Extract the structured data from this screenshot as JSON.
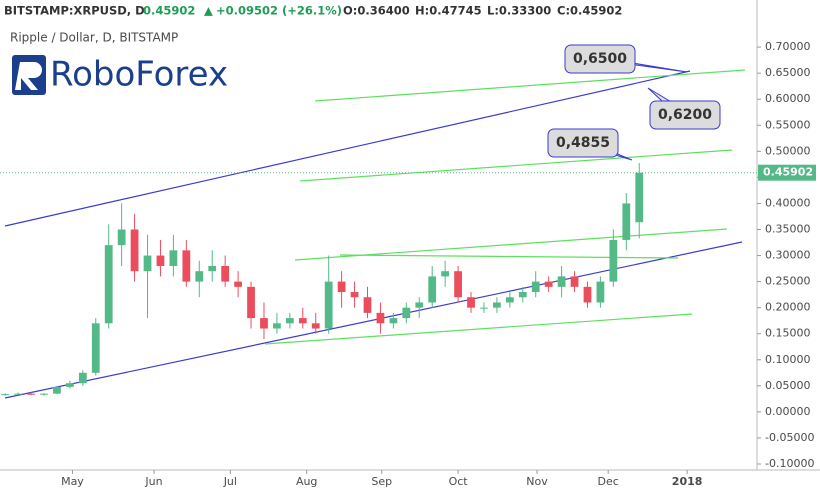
{
  "header": {
    "symbol": "BITSTAMP:XRPUSD, D",
    "last": "0.45902",
    "change": "+0.09502 (+26.1%)",
    "open": "O:0.36400",
    "high": "H:0.47745",
    "low": "L:0.33300",
    "close": "C:0.45902"
  },
  "logo": "RoboForex",
  "chart_data": {
    "type": "candlestick",
    "subtitle": "Ripple / Dollar, D, BITSTAMP",
    "up_color": "#53b987",
    "down_color": "#eb4d5c",
    "candles": [
      {
        "o": 0.033,
        "h": 0.036,
        "l": 0.031,
        "c": 0.034
      },
      {
        "o": 0.034,
        "h": 0.037,
        "l": 0.032,
        "c": 0.035
      },
      {
        "o": 0.035,
        "h": 0.038,
        "l": 0.032,
        "c": 0.033
      },
      {
        "o": 0.033,
        "h": 0.036,
        "l": 0.031,
        "c": 0.035
      },
      {
        "o": 0.035,
        "h": 0.05,
        "l": 0.034,
        "c": 0.048
      },
      {
        "o": 0.048,
        "h": 0.06,
        "l": 0.045,
        "c": 0.055
      },
      {
        "o": 0.055,
        "h": 0.08,
        "l": 0.05,
        "c": 0.075
      },
      {
        "o": 0.075,
        "h": 0.18,
        "l": 0.07,
        "c": 0.17
      },
      {
        "o": 0.17,
        "h": 0.36,
        "l": 0.16,
        "c": 0.32
      },
      {
        "o": 0.32,
        "h": 0.4,
        "l": 0.28,
        "c": 0.35
      },
      {
        "o": 0.35,
        "h": 0.38,
        "l": 0.25,
        "c": 0.27
      },
      {
        "o": 0.27,
        "h": 0.34,
        "l": 0.18,
        "c": 0.3
      },
      {
        "o": 0.3,
        "h": 0.33,
        "l": 0.26,
        "c": 0.28
      },
      {
        "o": 0.28,
        "h": 0.34,
        "l": 0.26,
        "c": 0.31
      },
      {
        "o": 0.31,
        "h": 0.33,
        "l": 0.24,
        "c": 0.25
      },
      {
        "o": 0.25,
        "h": 0.29,
        "l": 0.22,
        "c": 0.27
      },
      {
        "o": 0.27,
        "h": 0.31,
        "l": 0.25,
        "c": 0.28
      },
      {
        "o": 0.28,
        "h": 0.3,
        "l": 0.24,
        "c": 0.25
      },
      {
        "o": 0.25,
        "h": 0.27,
        "l": 0.22,
        "c": 0.24
      },
      {
        "o": 0.24,
        "h": 0.25,
        "l": 0.16,
        "c": 0.18
      },
      {
        "o": 0.18,
        "h": 0.21,
        "l": 0.14,
        "c": 0.16
      },
      {
        "o": 0.16,
        "h": 0.19,
        "l": 0.15,
        "c": 0.17
      },
      {
        "o": 0.17,
        "h": 0.19,
        "l": 0.16,
        "c": 0.18
      },
      {
        "o": 0.18,
        "h": 0.2,
        "l": 0.16,
        "c": 0.17
      },
      {
        "o": 0.17,
        "h": 0.19,
        "l": 0.15,
        "c": 0.16
      },
      {
        "o": 0.16,
        "h": 0.3,
        "l": 0.15,
        "c": 0.25
      },
      {
        "o": 0.25,
        "h": 0.27,
        "l": 0.2,
        "c": 0.23
      },
      {
        "o": 0.23,
        "h": 0.25,
        "l": 0.2,
        "c": 0.22
      },
      {
        "o": 0.22,
        "h": 0.24,
        "l": 0.18,
        "c": 0.19
      },
      {
        "o": 0.19,
        "h": 0.21,
        "l": 0.15,
        "c": 0.17
      },
      {
        "o": 0.17,
        "h": 0.19,
        "l": 0.16,
        "c": 0.18
      },
      {
        "o": 0.18,
        "h": 0.21,
        "l": 0.17,
        "c": 0.2
      },
      {
        "o": 0.2,
        "h": 0.22,
        "l": 0.18,
        "c": 0.21
      },
      {
        "o": 0.21,
        "h": 0.28,
        "l": 0.2,
        "c": 0.26
      },
      {
        "o": 0.26,
        "h": 0.29,
        "l": 0.24,
        "c": 0.27
      },
      {
        "o": 0.27,
        "h": 0.28,
        "l": 0.21,
        "c": 0.22
      },
      {
        "o": 0.22,
        "h": 0.23,
        "l": 0.19,
        "c": 0.2
      },
      {
        "o": 0.2,
        "h": 0.21,
        "l": 0.19,
        "c": 0.2
      },
      {
        "o": 0.2,
        "h": 0.22,
        "l": 0.19,
        "c": 0.21
      },
      {
        "o": 0.21,
        "h": 0.23,
        "l": 0.2,
        "c": 0.22
      },
      {
        "o": 0.22,
        "h": 0.24,
        "l": 0.21,
        "c": 0.23
      },
      {
        "o": 0.23,
        "h": 0.27,
        "l": 0.22,
        "c": 0.25
      },
      {
        "o": 0.25,
        "h": 0.26,
        "l": 0.23,
        "c": 0.24
      },
      {
        "o": 0.24,
        "h": 0.28,
        "l": 0.22,
        "c": 0.26
      },
      {
        "o": 0.26,
        "h": 0.27,
        "l": 0.23,
        "c": 0.24
      },
      {
        "o": 0.24,
        "h": 0.25,
        "l": 0.2,
        "c": 0.21
      },
      {
        "o": 0.21,
        "h": 0.26,
        "l": 0.2,
        "c": 0.25
      },
      {
        "o": 0.25,
        "h": 0.35,
        "l": 0.24,
        "c": 0.33
      },
      {
        "o": 0.33,
        "h": 0.42,
        "l": 0.31,
        "c": 0.4
      },
      {
        "o": 0.364,
        "h": 0.47745,
        "l": 0.333,
        "c": 0.45902
      }
    ],
    "xlim": [
      -0.4,
      58.1
    ],
    "xticks": [
      {
        "value": 5.2,
        "label": "May"
      },
      {
        "value": 11.5,
        "label": "Jun"
      },
      {
        "value": 17.4,
        "label": "Jul"
      },
      {
        "value": 23.3,
        "label": "Aug"
      },
      {
        "value": 29.1,
        "label": "Sep"
      },
      {
        "value": 35,
        "label": "Oct"
      },
      {
        "value": 41.1,
        "label": "Nov"
      },
      {
        "value": 46.6,
        "label": "Dec"
      },
      {
        "value": 52.7,
        "label": "2018"
      }
    ],
    "ylim": [
      -0.1115,
      0.7904
    ],
    "yticks": [
      {
        "value": 0.7,
        "label": "0.70000"
      },
      {
        "value": 0.65,
        "label": "0.65000"
      },
      {
        "value": 0.6,
        "label": "0.60000"
      },
      {
        "value": 0.55,
        "label": "0.55000"
      },
      {
        "value": 0.5,
        "label": "0.50000"
      },
      {
        "value": 0.45,
        "label": "0.45000"
      },
      {
        "value": 0.4,
        "label": "0.40000"
      },
      {
        "value": 0.35,
        "label": "0.35000"
      },
      {
        "value": 0.3,
        "label": "0.30000"
      },
      {
        "value": 0.25,
        "label": "0.25000"
      },
      {
        "value": 0.2,
        "label": "0.20000"
      },
      {
        "value": 0.15,
        "label": "0.15000"
      },
      {
        "value": 0.1,
        "label": "0.10000"
      },
      {
        "value": 0.05,
        "label": "0.05000"
      },
      {
        "value": 0,
        "label": "0.00000"
      },
      {
        "value": -0.05,
        "label": "-0.05000"
      },
      {
        "value": -0.1,
        "label": "-0.10000"
      }
    ],
    "last_price": {
      "value": 0.45902,
      "label": "0.45902"
    },
    "annotations": [
      "0,6500",
      "0,6200",
      "0,4855"
    ]
  }
}
